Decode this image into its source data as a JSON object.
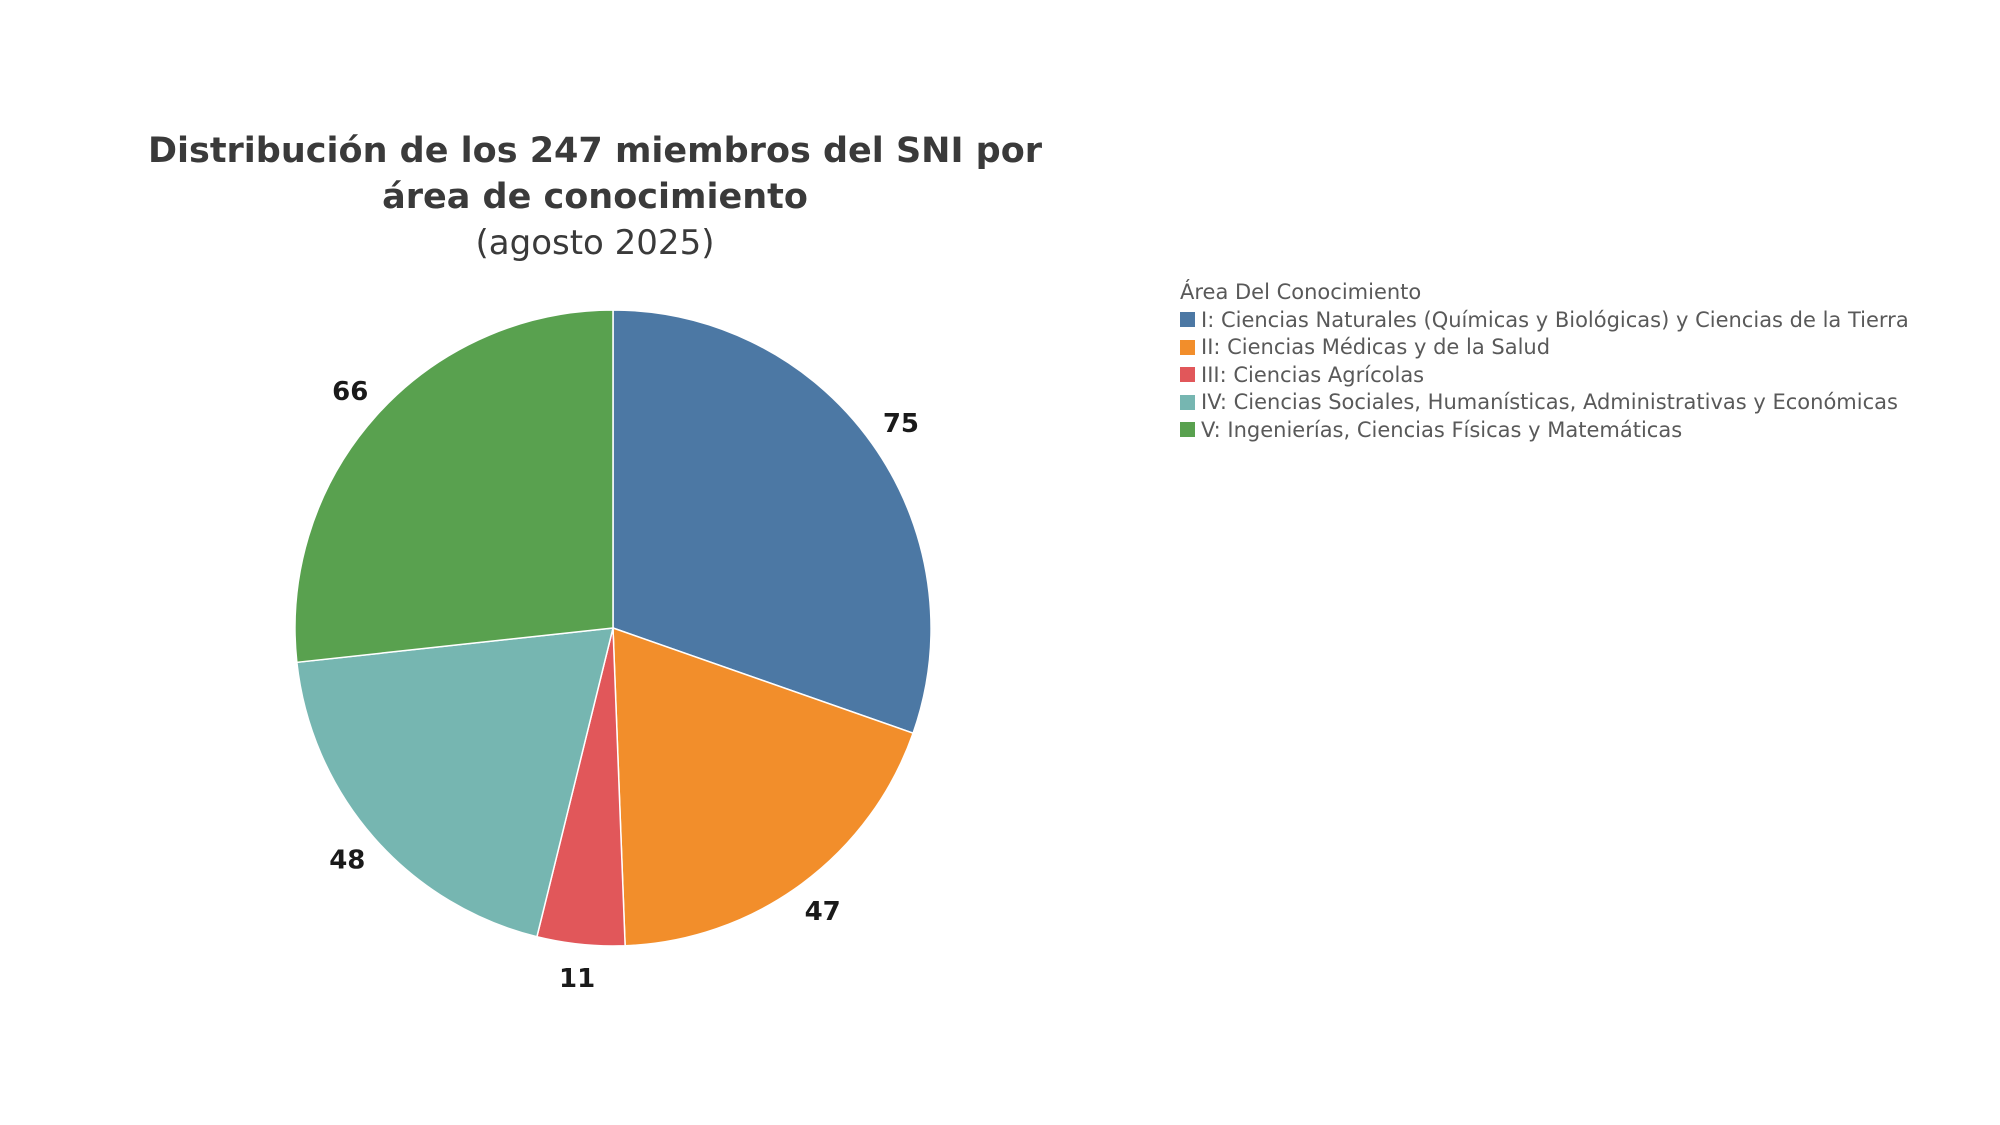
{
  "chart_data": {
    "type": "pie",
    "title": "Distribución de los 247 miembros del SNI por área de conocimiento",
    "subtitle": "(agosto 2025)",
    "legend_title": "Área Del Conocimiento",
    "legend_position": "right",
    "slices": [
      {
        "label": "I: Ciencias Naturales (Químicas y Biológicas) y Ciencias de la Tierra",
        "value": 75,
        "color": "#4c78a4"
      },
      {
        "label": "II: Ciencias Médicas y de la Salud",
        "value": 47,
        "color": "#f28e2b"
      },
      {
        "label": "III: Ciencias Agrícolas",
        "value": 11,
        "color": "#e1575a"
      },
      {
        "label": "IV: Ciencias Sociales, Humanísticas, Administrativas y Económicas",
        "value": 48,
        "color": "#76b6b1"
      },
      {
        "label": "V: Ingenierías, Ciencias Físicas y Matemáticas",
        "value": 66,
        "color": "#59a14f"
      }
    ]
  }
}
